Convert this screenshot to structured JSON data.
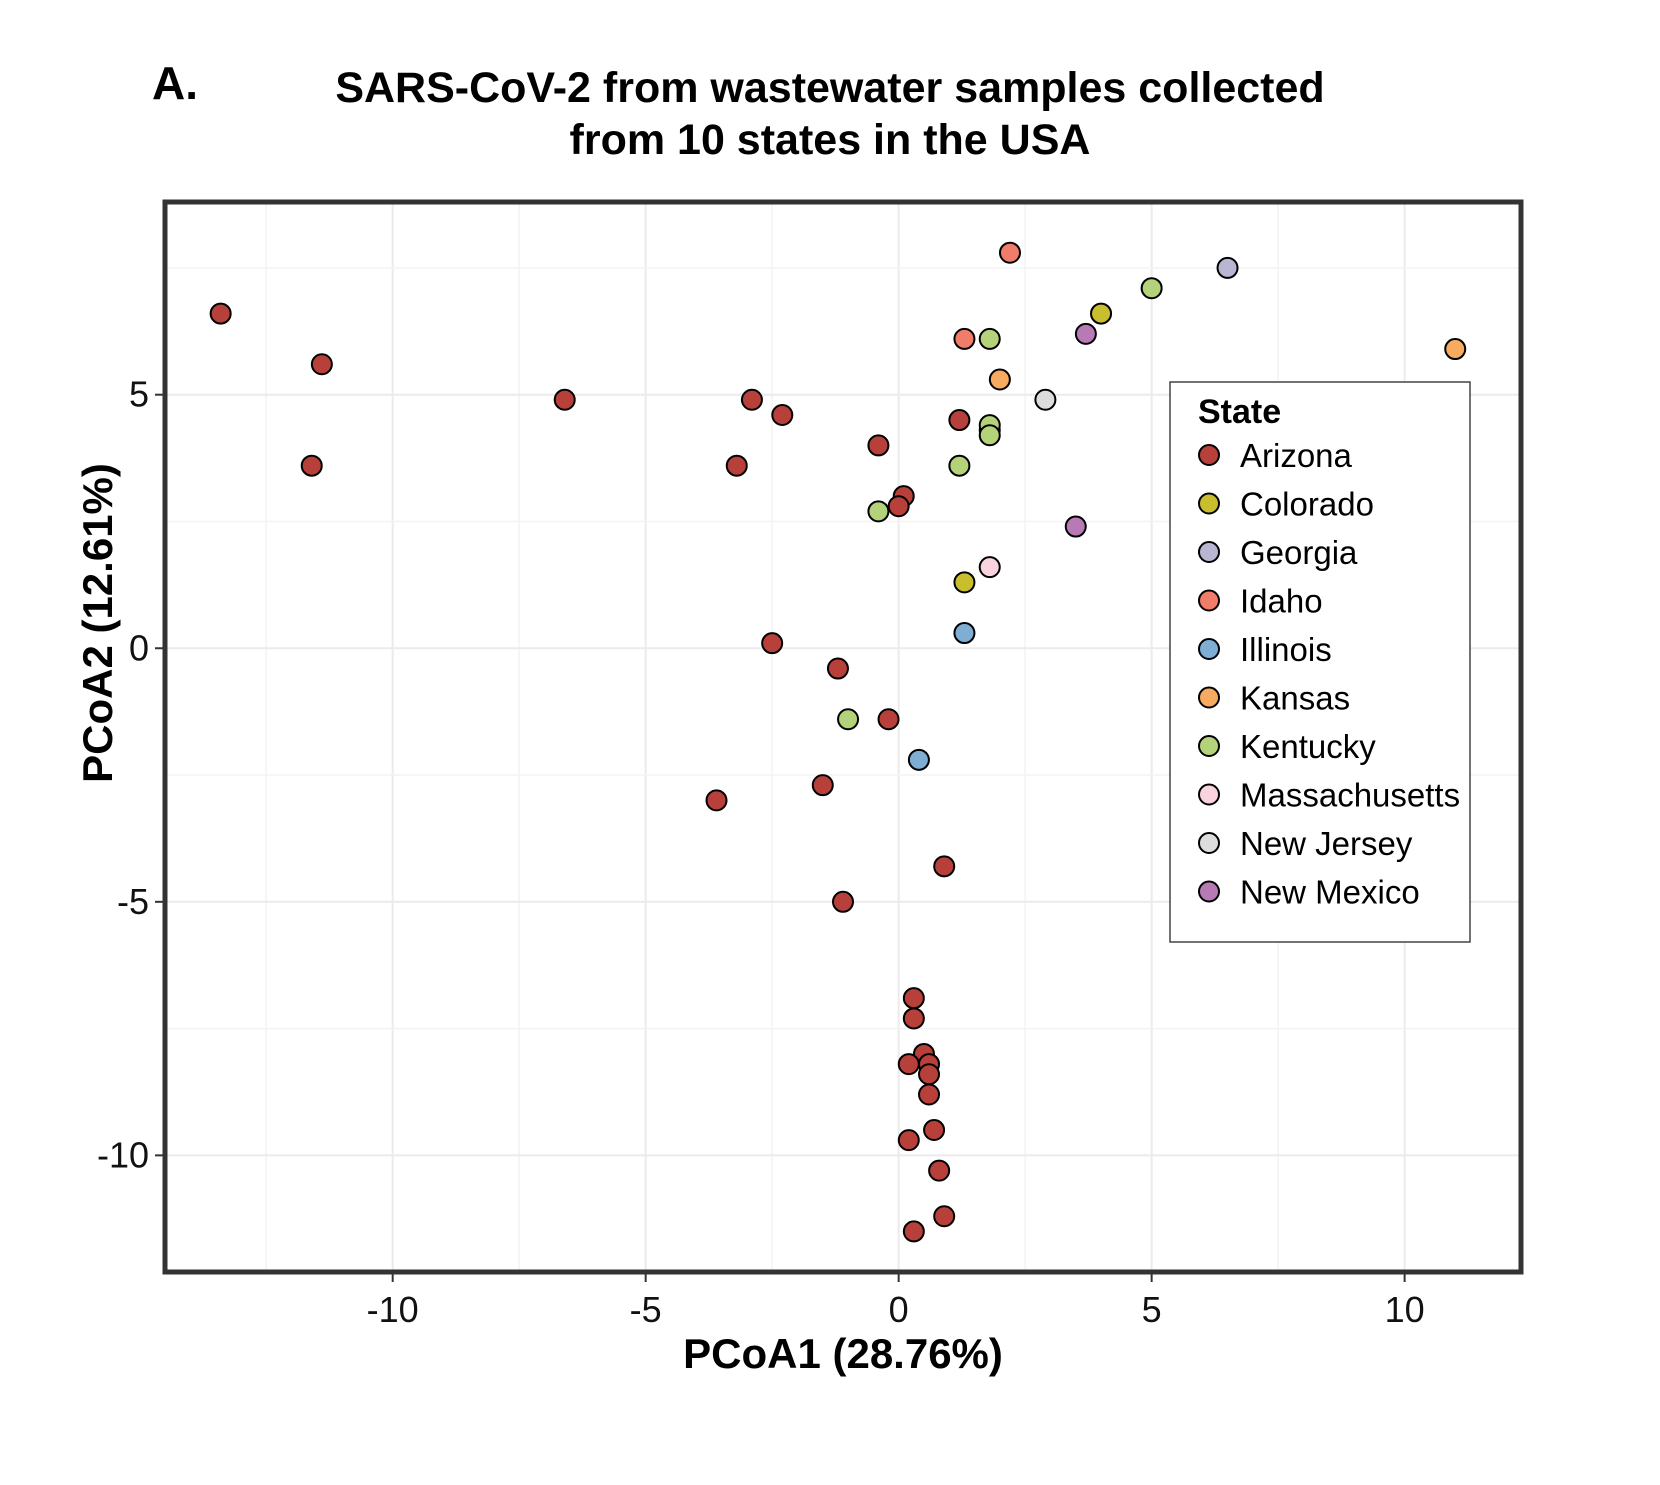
{
  "panel_label": "A.",
  "chart_data": {
    "type": "scatter",
    "title": [
      "SARS-CoV-2 from wastewater samples collected",
      "from 10 states in the USA"
    ],
    "xlabel": "PCoA1 (28.76%)",
    "ylabel": "PCoA2 (12.61%)",
    "xlim": [
      -14.5,
      12.3
    ],
    "ylim": [
      -12.3,
      8.8
    ],
    "xticks": [
      -10,
      -5,
      0,
      5,
      10
    ],
    "yticks": [
      -10,
      -5,
      0,
      5
    ],
    "xtick_labels": [
      "-10",
      "-5",
      "0",
      "5",
      "10"
    ],
    "ytick_labels": [
      "-10",
      "-5",
      "0",
      "5"
    ],
    "grid": true,
    "legend": {
      "title": "State",
      "position": "right"
    },
    "series": [
      {
        "name": "Arizona",
        "color": "#b8403a",
        "points": [
          [
            -13.4,
            6.6
          ],
          [
            -11.4,
            5.6
          ],
          [
            -11.6,
            3.6
          ],
          [
            -6.6,
            4.9
          ],
          [
            -2.9,
            4.9
          ],
          [
            -2.3,
            4.6
          ],
          [
            -3.2,
            3.6
          ],
          [
            -0.4,
            4.0
          ],
          [
            1.2,
            4.5
          ],
          [
            0.1,
            3.0
          ],
          [
            0.0,
            2.8
          ],
          [
            -2.5,
            0.1
          ],
          [
            -1.2,
            -0.4
          ],
          [
            -0.2,
            -1.4
          ],
          [
            -3.6,
            -3.0
          ],
          [
            -1.5,
            -2.7
          ],
          [
            0.9,
            -4.3
          ],
          [
            -1.1,
            -5.0
          ],
          [
            0.3,
            -6.9
          ],
          [
            0.3,
            -7.3
          ],
          [
            0.5,
            -8.0
          ],
          [
            0.2,
            -8.2
          ],
          [
            0.6,
            -8.2
          ],
          [
            0.6,
            -8.4
          ],
          [
            0.6,
            -8.8
          ],
          [
            0.7,
            -9.5
          ],
          [
            0.2,
            -9.7
          ],
          [
            0.8,
            -10.3
          ],
          [
            0.9,
            -11.2
          ],
          [
            0.3,
            -11.5
          ]
        ]
      },
      {
        "name": "Colorado",
        "color": "#c9be2e",
        "points": [
          [
            4.0,
            6.6
          ],
          [
            1.3,
            1.3
          ]
        ]
      },
      {
        "name": "Georgia",
        "color": "#b9b6d3",
        "points": [
          [
            6.5,
            7.5
          ],
          [
            1.8,
            4.3
          ]
        ]
      },
      {
        "name": "Idaho",
        "color": "#f07c6a",
        "points": [
          [
            2.2,
            7.8
          ],
          [
            1.3,
            6.1
          ]
        ]
      },
      {
        "name": "Illinois",
        "color": "#7eaed3",
        "points": [
          [
            1.3,
            0.3
          ],
          [
            0.4,
            -2.2
          ]
        ]
      },
      {
        "name": "Kansas",
        "color": "#f7ab60",
        "points": [
          [
            11.0,
            5.9
          ],
          [
            2.0,
            5.3
          ]
        ]
      },
      {
        "name": "Kentucky",
        "color": "#b4d27a",
        "points": [
          [
            5.0,
            7.1
          ],
          [
            1.8,
            6.1
          ],
          [
            1.8,
            4.4
          ],
          [
            1.8,
            4.2
          ],
          [
            1.2,
            3.6
          ],
          [
            -0.4,
            2.7
          ],
          [
            -1.0,
            -1.4
          ]
        ]
      },
      {
        "name": "Massachusetts",
        "color": "#f9d4de",
        "points": [
          [
            1.8,
            1.6
          ]
        ]
      },
      {
        "name": "New Jersey",
        "color": "#dcdcdc",
        "points": [
          [
            2.9,
            4.9
          ]
        ]
      },
      {
        "name": "New Mexico",
        "color": "#b77ab5",
        "points": [
          [
            3.7,
            6.2
          ],
          [
            3.5,
            2.4
          ]
        ]
      }
    ]
  }
}
